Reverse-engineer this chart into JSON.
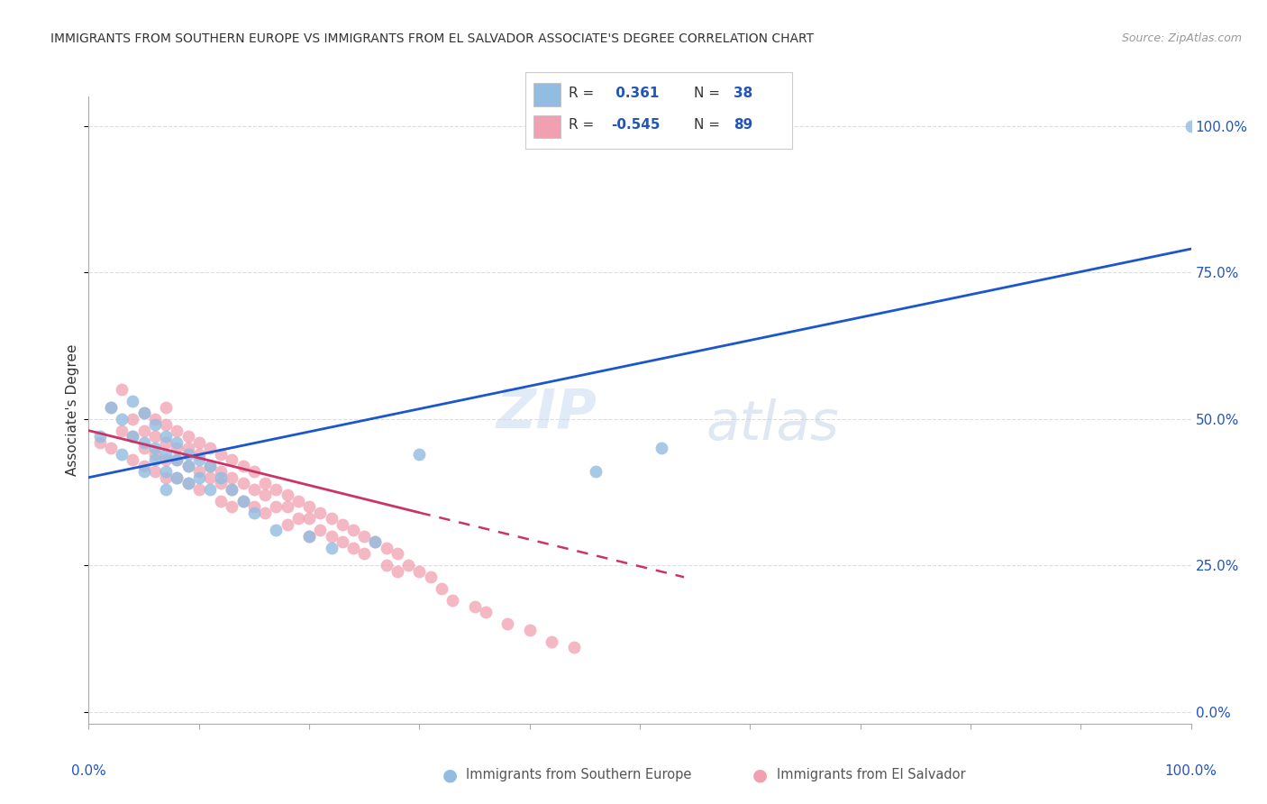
{
  "title": "IMMIGRANTS FROM SOUTHERN EUROPE VS IMMIGRANTS FROM EL SALVADOR ASSOCIATE'S DEGREE CORRELATION CHART",
  "source": "Source: ZipAtlas.com",
  "ylabel": "Associate's Degree",
  "ytick_labels": [
    "0.0%",
    "25.0%",
    "50.0%",
    "75.0%",
    "100.0%"
  ],
  "ytick_values": [
    0,
    25,
    50,
    75,
    100
  ],
  "legend_blue_r": "0.361",
  "legend_blue_n": "38",
  "legend_pink_r": "-0.545",
  "legend_pink_n": "89",
  "legend_label_blue": "Immigrants from Southern Europe",
  "legend_label_pink": "Immigrants from El Salvador",
  "blue_color": "#92bce0",
  "pink_color": "#f0a0b0",
  "blue_line_color": "#1a56cc",
  "pink_line_color": "#cc3366",
  "watermark_zip": "ZIP",
  "watermark_atlas": "atlas",
  "blue_scatter_x": [
    1,
    2,
    3,
    3,
    4,
    4,
    5,
    5,
    5,
    6,
    6,
    6,
    7,
    7,
    7,
    7,
    8,
    8,
    8,
    9,
    9,
    9,
    10,
    10,
    11,
    11,
    12,
    13,
    14,
    15,
    17,
    20,
    22,
    26,
    30,
    46,
    52,
    100
  ],
  "blue_scatter_y": [
    47,
    52,
    50,
    44,
    53,
    47,
    51,
    46,
    41,
    49,
    45,
    43,
    47,
    44,
    41,
    38,
    46,
    43,
    40,
    44,
    42,
    39,
    43,
    40,
    42,
    38,
    40,
    38,
    36,
    34,
    31,
    30,
    28,
    29,
    44,
    41,
    45,
    100
  ],
  "pink_scatter_x": [
    1,
    2,
    2,
    3,
    3,
    4,
    4,
    4,
    5,
    5,
    5,
    5,
    6,
    6,
    6,
    6,
    7,
    7,
    7,
    7,
    7,
    8,
    8,
    8,
    8,
    9,
    9,
    9,
    9,
    10,
    10,
    10,
    10,
    11,
    11,
    11,
    12,
    12,
    12,
    12,
    13,
    13,
    13,
    13,
    14,
    14,
    14,
    15,
    15,
    15,
    16,
    16,
    16,
    17,
    17,
    18,
    18,
    18,
    19,
    19,
    20,
    20,
    20,
    21,
    21,
    22,
    22,
    23,
    23,
    24,
    24,
    25,
    25,
    26,
    27,
    27,
    28,
    28,
    29,
    30,
    31,
    32,
    33,
    35,
    36,
    38,
    40,
    42,
    44
  ],
  "pink_scatter_y": [
    46,
    52,
    45,
    55,
    48,
    50,
    47,
    43,
    51,
    48,
    45,
    42,
    50,
    47,
    44,
    41,
    52,
    49,
    46,
    43,
    40,
    48,
    45,
    43,
    40,
    47,
    45,
    42,
    39,
    46,
    44,
    41,
    38,
    45,
    42,
    40,
    44,
    41,
    39,
    36,
    43,
    40,
    38,
    35,
    42,
    39,
    36,
    41,
    38,
    35,
    39,
    37,
    34,
    38,
    35,
    37,
    35,
    32,
    36,
    33,
    35,
    33,
    30,
    34,
    31,
    33,
    30,
    32,
    29,
    31,
    28,
    30,
    27,
    29,
    28,
    25,
    27,
    24,
    25,
    24,
    23,
    21,
    19,
    18,
    17,
    15,
    14,
    12,
    11
  ],
  "blue_line_x0": 0,
  "blue_line_x1": 100,
  "blue_line_y0": 40,
  "blue_line_y1": 79,
  "pink_solid_x0": 0,
  "pink_solid_x1": 30,
  "pink_solid_y0": 48,
  "pink_solid_y1": 34,
  "pink_dash_x0": 30,
  "pink_dash_x1": 54,
  "pink_dash_y0": 34,
  "pink_dash_y1": 23,
  "xlim": [
    0,
    100
  ],
  "ylim": [
    -2,
    105
  ],
  "grid_color": "#dddddd",
  "title_color": "#333333",
  "source_color": "#999999",
  "axis_label_color": "#333333",
  "right_tick_color": "#2255bb"
}
